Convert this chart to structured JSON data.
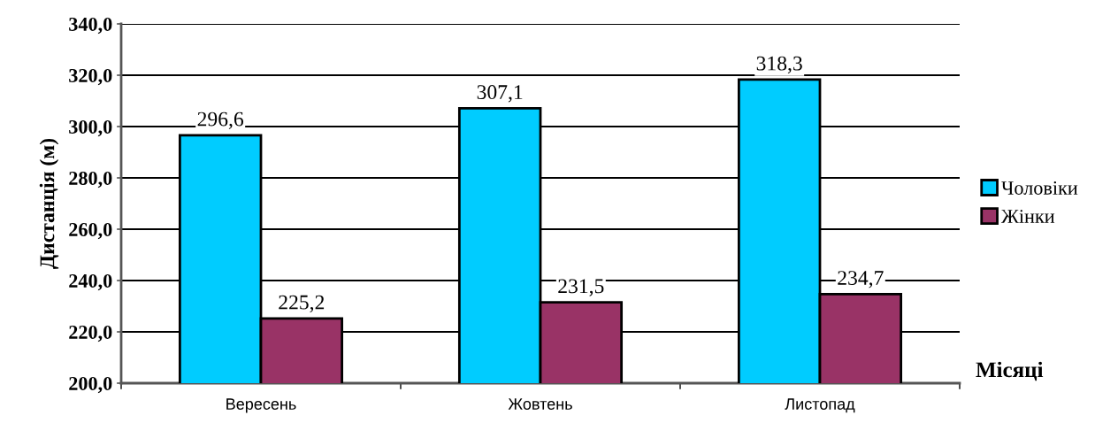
{
  "chart_data": {
    "type": "bar",
    "ylabel": "Дистанція (м)",
    "xlabel": "Місяці",
    "categories": [
      "Вересень",
      "Жовтень",
      "Листопад"
    ],
    "series": [
      {
        "name": "Чоловіки",
        "color": "#00ccff",
        "values": [
          296.6,
          307.1,
          318.3
        ],
        "value_labels": [
          "296,6",
          "307,1",
          "318,3"
        ]
      },
      {
        "name": "Жінки",
        "color": "#993366",
        "values": [
          225.2,
          231.5,
          234.7
        ],
        "value_labels": [
          "225,2",
          "231,5",
          "234,7"
        ]
      }
    ],
    "ylim": [
      200,
      340
    ],
    "yticks": [
      {
        "value": 200,
        "label": "200,0"
      },
      {
        "value": 220,
        "label": "220,0"
      },
      {
        "value": 240,
        "label": "240,0"
      },
      {
        "value": 260,
        "label": "260,0"
      },
      {
        "value": 280,
        "label": "280,0"
      },
      {
        "value": 300,
        "label": "300,0"
      },
      {
        "value": 320,
        "label": "320,0"
      },
      {
        "value": 340,
        "label": "340,0"
      }
    ],
    "grid": "y",
    "legend": "right"
  }
}
